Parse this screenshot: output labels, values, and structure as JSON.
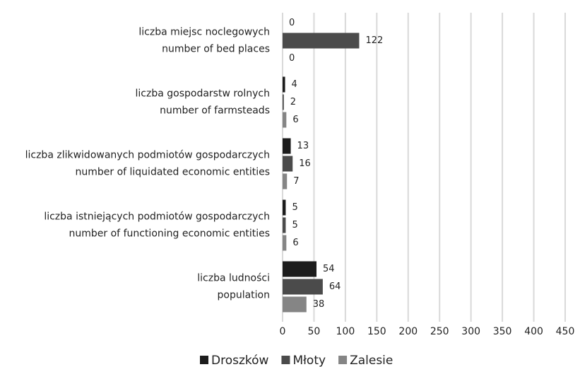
{
  "chart_data": {
    "type": "bar",
    "orientation": "horizontal",
    "categories": [
      [
        "liczba miejsc noclegowych",
        "number of bed places"
      ],
      [
        "liczba gospodarstw rolnych",
        "number of farmsteads"
      ],
      [
        "liczba zlikwidowanych podmiotów gospodarczych",
        "number of liquidated economic entities"
      ],
      [
        "liczba istniejących podmiotów gospodarczych",
        "number of functioning economic entities"
      ],
      [
        "liczba ludności",
        "population"
      ]
    ],
    "series": [
      {
        "name": "Droszków",
        "color": "#1c1c1c",
        "values": [
          0,
          4,
          13,
          5,
          54
        ]
      },
      {
        "name": "Młoty",
        "color": "#4b4b4b",
        "values": [
          122,
          2,
          16,
          5,
          64
        ]
      },
      {
        "name": "Zalesie",
        "color": "#858585",
        "values": [
          0,
          6,
          7,
          6,
          38
        ]
      }
    ],
    "xlim": [
      0,
      450
    ],
    "xticks": [
      0,
      50,
      100,
      150,
      200,
      250,
      300,
      350,
      400,
      450
    ],
    "grid": true,
    "legend": "bottom"
  }
}
